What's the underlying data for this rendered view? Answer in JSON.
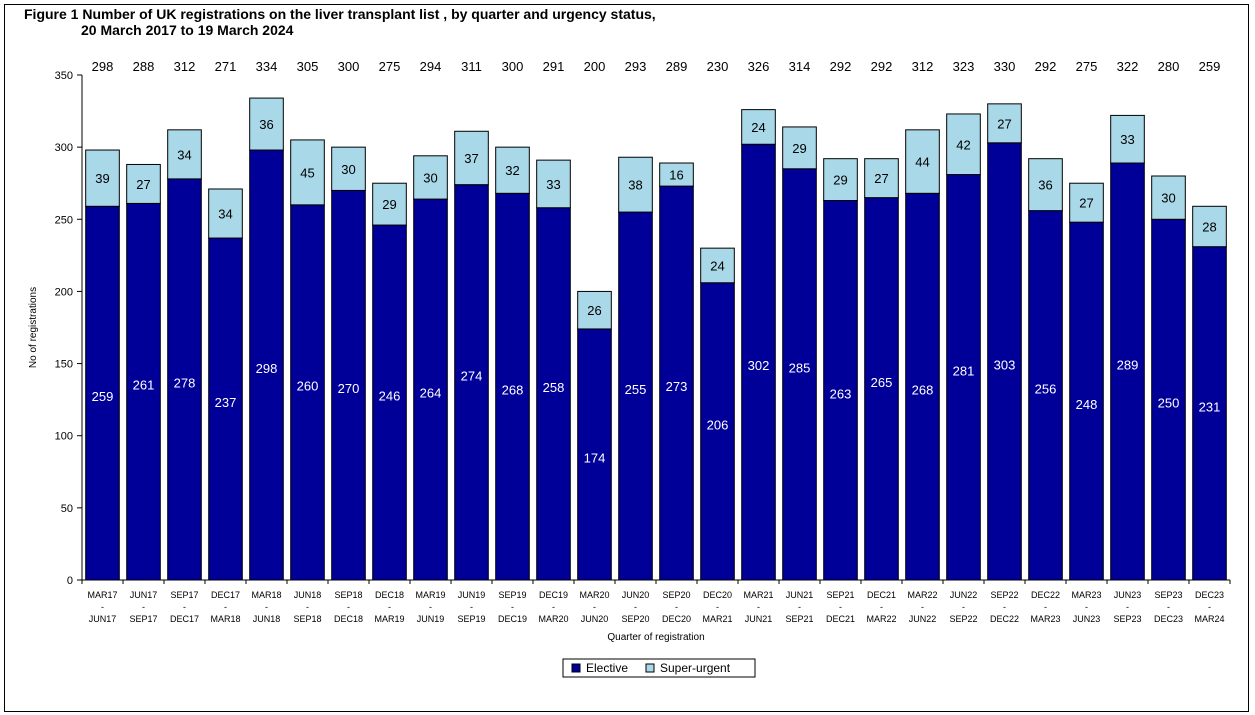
{
  "title_line1": "Figure 1 Number of UK registrations on the liver transplant list , by quarter and urgency status,",
  "title_line2": "20 March 2017 to 19 March 2024",
  "chart_data": {
    "type": "bar",
    "stacked": true,
    "xlabel": "Quarter of registration",
    "ylabel": "No of registrations",
    "ylim": [
      0,
      350
    ],
    "yticks": [
      0,
      50,
      100,
      150,
      200,
      250,
      300,
      350
    ],
    "grid": false,
    "legend_position": "bottom-center",
    "categories": [
      [
        "MAR17",
        "-",
        "JUN17"
      ],
      [
        "JUN17",
        "-",
        "SEP17"
      ],
      [
        "SEP17",
        "-",
        "DEC17"
      ],
      [
        "DEC17",
        "-",
        "MAR18"
      ],
      [
        "MAR18",
        "-",
        "JUN18"
      ],
      [
        "JUN18",
        "-",
        "SEP18"
      ],
      [
        "SEP18",
        "-",
        "DEC18"
      ],
      [
        "DEC18",
        "-",
        "MAR19"
      ],
      [
        "MAR19",
        "-",
        "JUN19"
      ],
      [
        "JUN19",
        "-",
        "SEP19"
      ],
      [
        "SEP19",
        "-",
        "DEC19"
      ],
      [
        "DEC19",
        "-",
        "MAR20"
      ],
      [
        "MAR20",
        "-",
        "JUN20"
      ],
      [
        "JUN20",
        "-",
        "SEP20"
      ],
      [
        "SEP20",
        "-",
        "DEC20"
      ],
      [
        "DEC20",
        "-",
        "MAR21"
      ],
      [
        "MAR21",
        "-",
        "JUN21"
      ],
      [
        "JUN21",
        "-",
        "SEP21"
      ],
      [
        "SEP21",
        "-",
        "DEC21"
      ],
      [
        "DEC21",
        "-",
        "MAR22"
      ],
      [
        "MAR22",
        "-",
        "JUN22"
      ],
      [
        "JUN22",
        "-",
        "SEP22"
      ],
      [
        "SEP22",
        "-",
        "DEC22"
      ],
      [
        "DEC22",
        "-",
        "MAR23"
      ],
      [
        "MAR23",
        "-",
        "JUN23"
      ],
      [
        "JUN23",
        "-",
        "SEP23"
      ],
      [
        "SEP23",
        "-",
        "DEC23"
      ],
      [
        "DEC23",
        "-",
        "MAR24"
      ]
    ],
    "series": [
      {
        "name": "Elective",
        "color": "#000099",
        "values": [
          259,
          261,
          278,
          237,
          298,
          260,
          270,
          246,
          264,
          274,
          268,
          258,
          174,
          255,
          273,
          206,
          302,
          285,
          263,
          265,
          268,
          281,
          303,
          256,
          248,
          289,
          250,
          231
        ]
      },
      {
        "name": "Super-urgent",
        "color": "#a9d8e8",
        "values": [
          39,
          27,
          34,
          34,
          36,
          45,
          30,
          29,
          30,
          37,
          32,
          33,
          26,
          38,
          16,
          24,
          24,
          29,
          29,
          27,
          44,
          42,
          27,
          36,
          27,
          33,
          30,
          28
        ]
      }
    ],
    "totals": [
      298,
      288,
      312,
      271,
      334,
      305,
      300,
      275,
      294,
      311,
      300,
      291,
      200,
      293,
      289,
      230,
      326,
      314,
      292,
      292,
      312,
      323,
      330,
      292,
      275,
      322,
      280,
      259
    ]
  }
}
